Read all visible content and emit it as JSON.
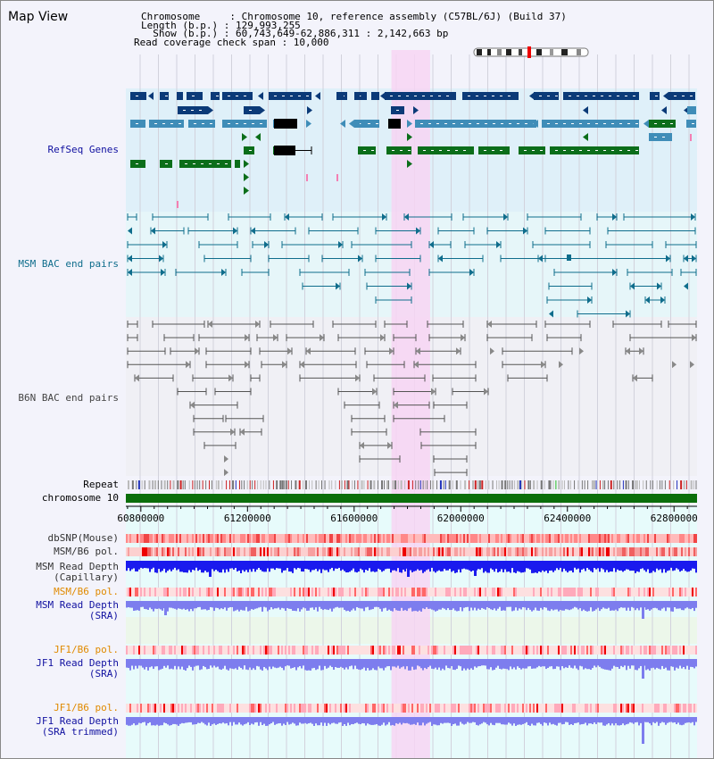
{
  "title": "Map View",
  "info": {
    "chromosome": "Chromosome     : Chromosome 10, reference assembly (C57BL/6J) (Build 37)",
    "length": "Length (b.p.) : 129,993,255",
    "show": "  Show (b.p.) : 60,743,649-62,886,311 : 2,142,663 bp",
    "coverage": "Read coverage check span : 10,000"
  },
  "tracks": {
    "refseq": "RefSeq Genes",
    "msm_bac": "MSM BAC end pairs",
    "b6n_bac": "B6N BAC end pairs",
    "repeat": "Repeat",
    "chromosome": "chromosome 10",
    "dbsnp": "dbSNP(Mouse)",
    "msm_b6_pol1": "MSM/B6 pol.",
    "msm_depth_cap_1": "MSM Read Depth",
    "msm_depth_cap_2": "(Capillary)",
    "msm_b6_pol2": "MSM/B6 pol.",
    "msm_depth_sra_1": "MSM Read Depth",
    "msm_depth_sra_2": "(SRA)",
    "jf1_b6_pol1": "JF1/B6 pol.",
    "jf1_depth_sra_1": "JF1 Read Depth",
    "jf1_depth_sra_2": "(SRA)",
    "jf1_b6_pol2": "JF1/B6 pol.",
    "jf1_depth_trim_1": "JF1 Read Depth",
    "jf1_depth_trim_2": "(SRA trimmed)"
  },
  "axis": {
    "ticks": [
      {
        "pos": 60800000,
        "label": "60800000"
      },
      {
        "pos": 61200000,
        "label": "61200000"
      },
      {
        "pos": 61600000,
        "label": "61600000"
      },
      {
        "pos": 62000000,
        "label": "62000000"
      },
      {
        "pos": 62400000,
        "label": "62400000"
      },
      {
        "pos": 62800000,
        "label": "62800000"
      }
    ],
    "range": [
      60743649,
      62886311
    ]
  },
  "highlight": {
    "start": 61740000,
    "end": 61885000,
    "color": "#f7d5f3"
  },
  "colors": {
    "refseq_dark": "#0b3a78",
    "refseq_mid": "#3f8db8",
    "refseq_green": "#0b6e1a",
    "msm_bac": "#0f6d8c",
    "b6n_bac": "#555555",
    "chrom": "#0b6e0b",
    "depth_cap": "#1a1aee",
    "depth_sra": "#7d7dee"
  }
}
